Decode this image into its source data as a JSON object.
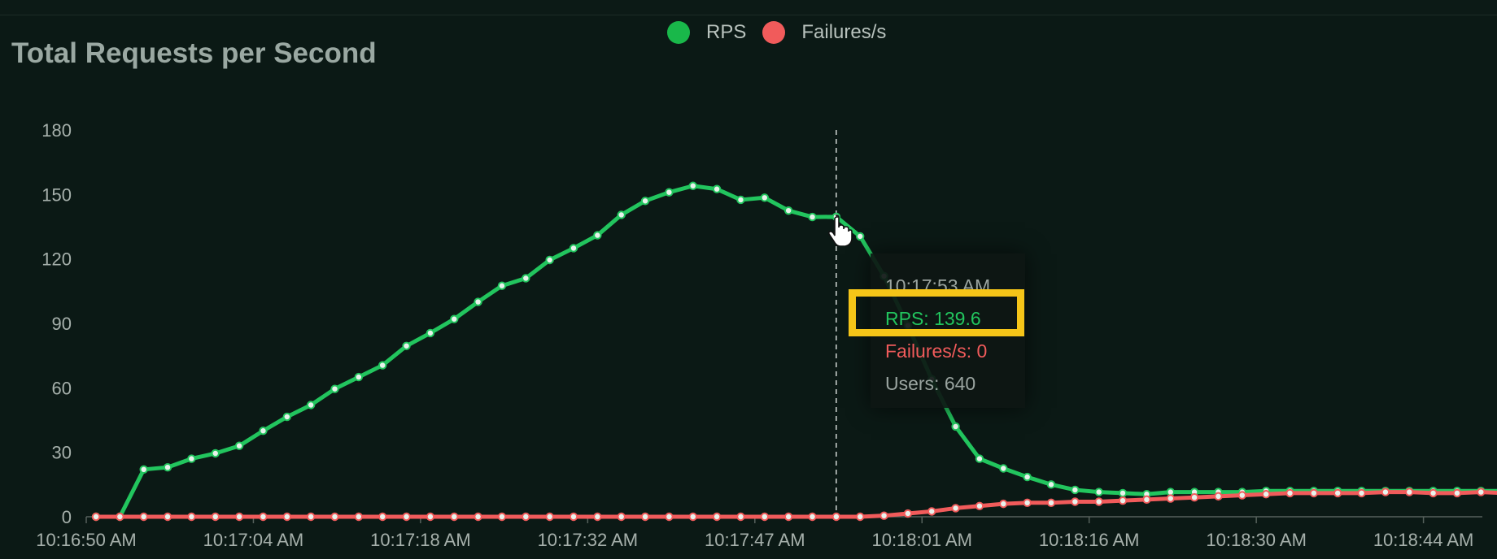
{
  "legend": {
    "rps_label": "RPS",
    "failures_label": "Failures/s"
  },
  "colors": {
    "rps": "#22c55e",
    "failures": "#f15b5b",
    "background": "#0b1915",
    "highlight": "#f5c518"
  },
  "tooltip": {
    "time": "10:17:53 AM",
    "rps": "RPS: 139.6",
    "failures": "Failures/s: 0",
    "users": "Users: 640"
  },
  "chart_data": {
    "type": "line",
    "title": "Total Requests per Second",
    "xlabel": "",
    "ylabel": "",
    "ylim": [
      0,
      180
    ],
    "yticks": [
      0,
      30,
      60,
      90,
      120,
      150,
      180
    ],
    "xtick_labels": [
      "10:16:50 AM",
      "10:17:04 AM",
      "10:17:18 AM",
      "10:17:32 AM",
      "10:17:47 AM",
      "10:18:01 AM",
      "10:18:16 AM",
      "10:18:30 AM",
      "10:18:44 AM"
    ],
    "hover_index": 31,
    "series": [
      {
        "name": "RPS",
        "values": [
          0,
          0,
          22,
          23,
          27,
          29.5,
          33,
          40,
          46.5,
          52,
          59.5,
          65,
          70.5,
          79.5,
          85.5,
          92,
          100,
          107.5,
          111,
          119.5,
          125,
          131,
          140.5,
          147,
          151,
          154,
          152.5,
          147.5,
          148.5,
          142.5,
          139.5,
          139.6,
          130.5,
          112,
          89,
          64,
          42,
          27,
          22.5,
          18.5,
          15,
          12.5,
          11.5,
          11,
          10.5,
          11.5,
          11.5,
          11.5,
          11.5,
          12,
          12,
          12,
          12,
          12,
          12,
          12,
          12,
          12,
          12,
          12,
          11.5
        ]
      },
      {
        "name": "Failures/s",
        "values": [
          0,
          0,
          0,
          0,
          0,
          0,
          0,
          0,
          0,
          0,
          0,
          0,
          0,
          0,
          0,
          0,
          0,
          0,
          0,
          0,
          0,
          0,
          0,
          0,
          0,
          0,
          0,
          0,
          0,
          0,
          0,
          0,
          0,
          0.5,
          1.5,
          2.5,
          4,
          5,
          6,
          6.5,
          6.5,
          7,
          7,
          7.5,
          8,
          8.5,
          9,
          9.5,
          10,
          10.5,
          11,
          11,
          11,
          11,
          11.5,
          11.5,
          11,
          11,
          11.5,
          11,
          10.5
        ]
      }
    ]
  }
}
